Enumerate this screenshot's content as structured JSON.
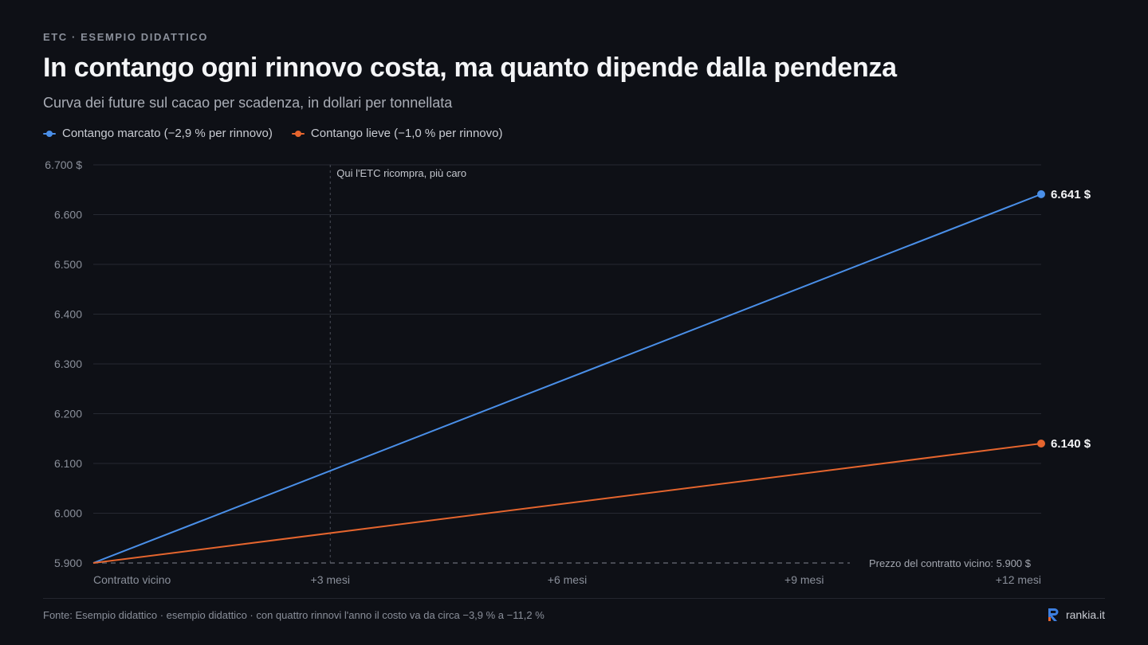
{
  "header": {
    "eyebrow": "ETC · ESEMPIO DIDATTICO",
    "title": "In contango ogni rinnovo costa, ma quanto dipende dalla pendenza",
    "subtitle": "Curva dei future sul cacao per scadenza, in dollari per tonnellata"
  },
  "legend": [
    {
      "label": "Contango marcato (−2,9 % per rinnovo)",
      "color": "#4a8fe8"
    },
    {
      "label": "Contango lieve (−1,0 % per rinnovo)",
      "color": "#e5652e"
    }
  ],
  "chart_data": {
    "type": "line",
    "x_ticks": [
      "Contratto vicino",
      "+3 mesi",
      "+6 mesi",
      "+9 mesi",
      "+12 mesi"
    ],
    "y_ticks": [
      "6.700 $",
      "6.600",
      "6.500",
      "6.400",
      "6.300",
      "6.200",
      "6.100",
      "6.000",
      "5.900"
    ],
    "ylim": [
      5900,
      6700
    ],
    "xlim": [
      0,
      12
    ],
    "grid": true,
    "series": [
      {
        "name": "Contango marcato (−2,9 % per rinnovo)",
        "color": "#4a8fe8",
        "x": [
          0,
          12
        ],
        "y": [
          5900,
          6641
        ],
        "end_label": "6.641 $"
      },
      {
        "name": "Contango lieve (−1,0 % per rinnovo)",
        "color": "#e5652e",
        "x": [
          0,
          12
        ],
        "y": [
          5900,
          6140
        ],
        "end_label": "6.140 $"
      }
    ],
    "annotations": [
      {
        "type": "vline",
        "x": 3,
        "text": "Qui l'ETC ricompra, più caro"
      },
      {
        "type": "hline",
        "y": 5900,
        "text": "Prezzo del contratto vicino: 5.900 $"
      }
    ]
  },
  "footer": {
    "source": "Fonte: Esempio didattico · esempio didattico · con quattro rinnovi l'anno il costo va da circa −3,9 % a −11,2 %",
    "brand": "rankia.it",
    "brand_color": "#e5652e",
    "brand_accent": "#3d7fe0"
  }
}
